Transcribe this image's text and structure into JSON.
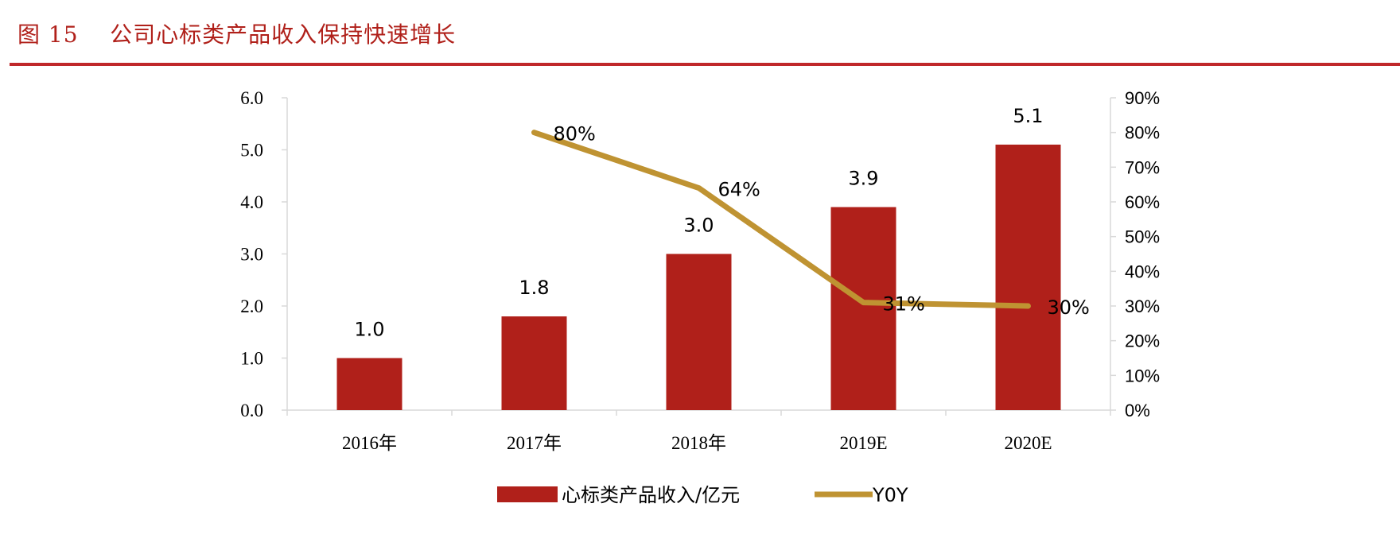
{
  "figure": {
    "title": "图 15    公司心标类产品收入保持快速增长"
  },
  "colors": {
    "bar": "#B0201A",
    "line": "#BF9332",
    "title": "#B0201A",
    "axis": "#D9D9D9"
  },
  "chart_data": {
    "type": "bar+line",
    "title": "",
    "categories": [
      "2016年",
      "2017年",
      "2018年",
      "2019E",
      "2020E"
    ],
    "series": [
      {
        "name": "心标类产品收入/亿元",
        "type": "bar",
        "axis": "left",
        "values": [
          1.0,
          1.8,
          3.0,
          3.9,
          5.1
        ],
        "labels": [
          "1.0",
          "1.8",
          "3.0",
          "3.9",
          "5.1"
        ]
      },
      {
        "name": "Y0Y",
        "type": "line",
        "axis": "right",
        "values": [
          null,
          0.8,
          0.64,
          0.31,
          0.3
        ],
        "labels": [
          "",
          "80%",
          "64%",
          "31%",
          "30%"
        ]
      }
    ],
    "y_left": {
      "lim": [
        0,
        6
      ],
      "ticks": [
        "0.0",
        "1.0",
        "2.0",
        "3.0",
        "4.0",
        "5.0",
        "6.0"
      ]
    },
    "y_right": {
      "lim": [
        0,
        0.9
      ],
      "ticks": [
        "0%",
        "10%",
        "20%",
        "30%",
        "40%",
        "50%",
        "60%",
        "70%",
        "80%",
        "90%"
      ]
    },
    "grid": false,
    "legend": "bottom"
  }
}
